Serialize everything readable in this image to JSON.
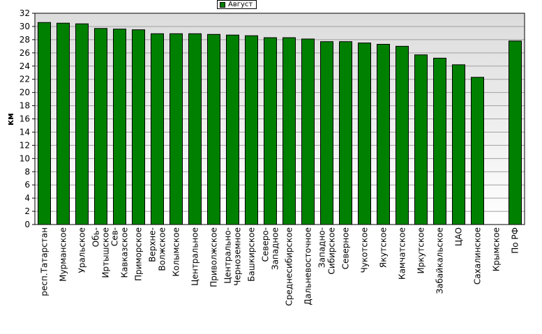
{
  "chart_data": {
    "type": "bar",
    "title": "",
    "xlabel": "",
    "ylabel": "км",
    "ylim": [
      0,
      32
    ],
    "ytick_step": 2,
    "grid": "horizontal",
    "legend_position": "top-center",
    "bar_color": "#008000",
    "categories": [
      "респ.Татарстан",
      "Мурманское",
      "Уральское",
      "Обь-Иртышское",
      "Сев-Кавказское",
      "Приморское",
      "Верхне-Волжское",
      "Колымское",
      "Центральное",
      "Приволжское",
      "Центрально-Черноземное",
      "Башкирское",
      "Северо-Западное",
      "Среднесибирское",
      "Дальневосточное",
      "Западно-Сибирское",
      "Северное",
      "Чукотское",
      "Якутское",
      "Камчатское",
      "Иркутское",
      "Забайкальское",
      "ЦАО",
      "Сахалинское",
      "Крымское",
      "По РФ"
    ],
    "category_lines": [
      [
        "респ.Татарстан"
      ],
      [
        "Мурманское"
      ],
      [
        "Уральское"
      ],
      [
        "Обь-",
        "Иртышское"
      ],
      [
        "Сев-",
        "Кавказское"
      ],
      [
        "Приморское"
      ],
      [
        "Верхне-",
        "Волжское"
      ],
      [
        "Колымское"
      ],
      [
        "Центральное"
      ],
      [
        "Приволжское"
      ],
      [
        "Центрально-",
        "Черноземное"
      ],
      [
        "Башкирское"
      ],
      [
        "Северо-",
        "Западное"
      ],
      [
        "Среднесибирское"
      ],
      [
        "Дальневосточное"
      ],
      [
        "Западно-",
        "Сибирское"
      ],
      [
        "Северное"
      ],
      [
        "Чукотское"
      ],
      [
        "Якутское"
      ],
      [
        "Камчатское"
      ],
      [
        "Иркутское"
      ],
      [
        "Забайкальское"
      ],
      [
        "ЦАО"
      ],
      [
        "Сахалинское"
      ],
      [
        "Крымское"
      ],
      [
        "По РФ"
      ]
    ],
    "series": [
      {
        "name": "Август",
        "values": [
          30.6,
          30.5,
          30.4,
          29.7,
          29.6,
          29.5,
          28.9,
          28.9,
          28.9,
          28.8,
          28.7,
          28.6,
          28.3,
          28.3,
          28.1,
          27.7,
          27.7,
          27.5,
          27.3,
          27.0,
          25.7,
          25.2,
          24.2,
          22.3,
          0,
          27.8
        ]
      }
    ]
  }
}
